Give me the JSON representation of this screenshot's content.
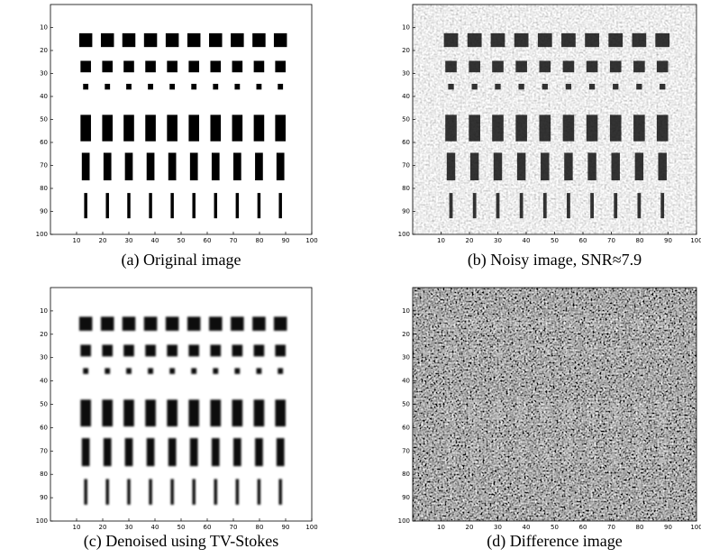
{
  "xlim": [
    0,
    100
  ],
  "ylim": [
    0,
    100
  ],
  "xticks": [
    10,
    20,
    30,
    40,
    50,
    60,
    70,
    80,
    90,
    100
  ],
  "yticks": [
    10,
    20,
    30,
    40,
    50,
    60,
    70,
    80,
    90,
    100
  ],
  "panels": [
    {
      "caption": "(a) Original image"
    },
    {
      "caption": "(b) Noisy image, SNR≈7.9"
    },
    {
      "caption": "(c) Denoised using TV-Stokes"
    },
    {
      "caption": "(d) Difference image"
    }
  ]
}
